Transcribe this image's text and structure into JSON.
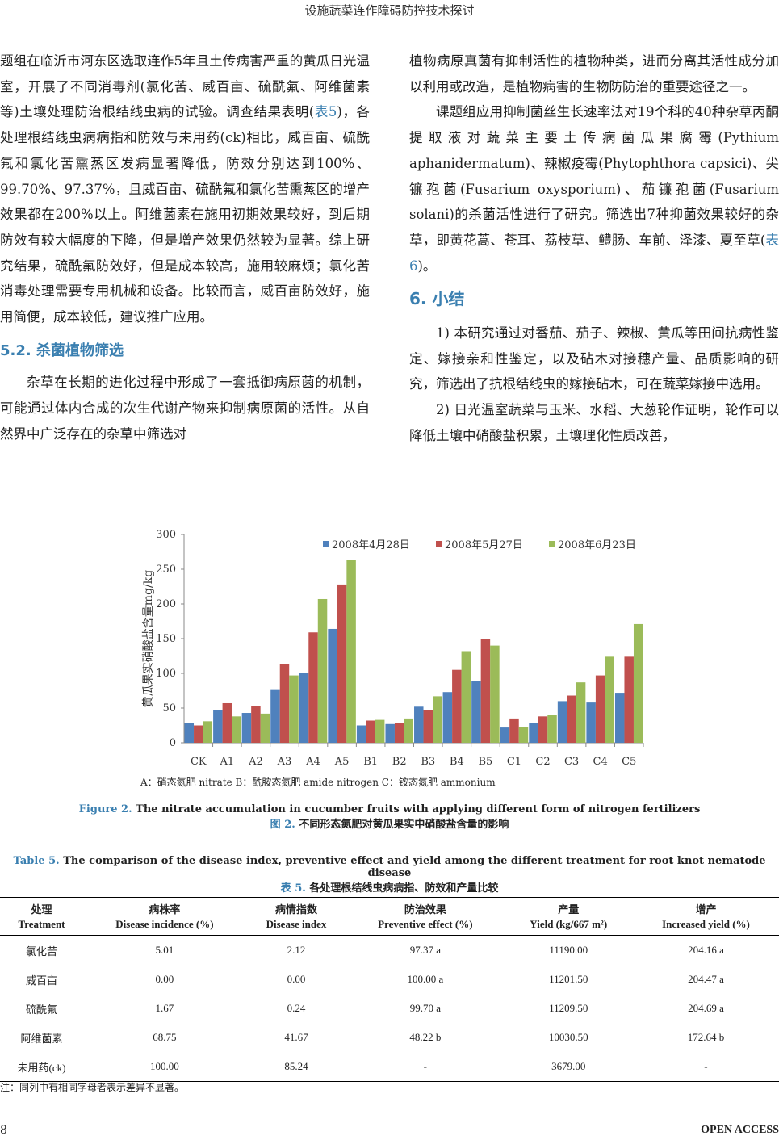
{
  "header": {
    "running_title": "设施蔬菜连作障碍防控技术探讨"
  },
  "left_column": {
    "p1": "题组在临沂市河东区选取连作5年且土传病害严重的黄瓜日光温室，开展了不同消毒剂(氯化苦、威百亩、硫酰氟、阿维菌素等)土壤处理防治根结线虫病的试验。调查结果表明(",
    "p1_ref": "表5",
    "p1_rest": ")，各处理根结线虫病病指和防效与未用药(ck)相比，威百亩、硫酰氟和氯化苦熏蒸区发病显著降低，防效分别达到100%、99.70%、97.37%，且威百亩、硫酰氟和氯化苦熏蒸区的增产效果都在200%以上。阿维菌素在施用初期效果较好，到后期防效有较大幅度的下降，但是增产效果仍然较为显著。综上研究结果，硫酰氟防效好，但是成本较高，施用较麻烦；氯化苦消毒处理需要专用机械和设备。比较而言，威百亩防效好，施用简便，成本较低，建议推广应用。",
    "h_5_2": "5.2.  杀菌植物筛选",
    "p2": "杂草在长期的进化过程中形成了一套抵御病原菌的机制，可能通过体内合成的次生代谢产物来抑制病原菌的活性。从自然界中广泛存在的杂草中筛选对"
  },
  "right_column": {
    "p1": "植物病原真菌有抑制活性的植物种类，进而分离其活性成分加以利用或改造，是植物病害的生物防防治的重要途径之一。",
    "p2": "课题组应用抑制菌丝生长速率法对19个科的40种杂草丙酮提取液对蔬菜主要土传病菌瓜果腐霉(Pythium aphanidermatum)、辣椒疫霉(Phytophthora capsici)、尖镰孢菌(Fusarium oxysporium)、茄镰孢菌(Fusarium solani)的杀菌活性进行了研究。筛选出7种抑菌效果较好的杂草，即黄花蒿、苍耳、荔枝草、鳢肠、车前、泽漆、夏至草(",
    "p2_ref": "表6",
    "p2_rest": ")。",
    "h_6": "6.  小结",
    "p3": "1) 本研究通过对番茄、茄子、辣椒、黄瓜等田间抗病性鉴定、嫁接亲和性鉴定，以及砧木对接穗产量、品质影响的研究，筛选出了抗根结线虫的嫁接砧木，可在蔬菜嫁接中选用。",
    "p4": "2) 日光温室蔬菜与玉米、水稻、大葱轮作证明，轮作可以降低土壤中硝酸盐积累，土壤理化性质改善，"
  },
  "chart_data": {
    "type": "bar",
    "categories": [
      "CK",
      "A1",
      "A2",
      "A3",
      "A4",
      "A5",
      "B1",
      "B2",
      "B3",
      "B4",
      "B5",
      "C1",
      "C2",
      "C3",
      "C4",
      "C5"
    ],
    "series": [
      {
        "name": "2008年4月28日",
        "color": "#4f81bd",
        "values": [
          28,
          47,
          43,
          76,
          101,
          164,
          25,
          27,
          52,
          73,
          89,
          22,
          29,
          60,
          58,
          72
        ]
      },
      {
        "name": "2008年5月27日",
        "color": "#c0504d",
        "values": [
          25,
          57,
          53,
          113,
          159,
          228,
          32,
          28,
          47,
          105,
          150,
          35,
          38,
          68,
          97,
          124
        ]
      },
      {
        "name": "2008年6月23日",
        "color": "#9bbb59",
        "values": [
          31,
          38,
          42,
          97,
          207,
          263,
          33,
          35,
          67,
          132,
          140,
          23,
          40,
          87,
          124,
          171
        ]
      }
    ],
    "ylabel": "黄瓜果实硝酸盐含量mg/kg",
    "ylim": [
      0,
      300
    ],
    "yticks": [
      "0",
      "50",
      "100",
      "150",
      "200",
      "250",
      "300"
    ],
    "legend": "top-right",
    "grid": false
  },
  "chart_note": "A：硝态氮肥 nitrate B：酰胺态氮肥 amide nitrogen C：铵态氮肥 ammonium",
  "figure_caption": {
    "label_en": "Figure 2.",
    "text_en": "The nitrate accumulation in cucumber fruits with applying different form of nitrogen fertilizers",
    "label_cn": "图 2.",
    "text_cn": "不同形态氮肥对黄瓜果实中硝酸盐含量的影响"
  },
  "table_caption": {
    "label_en": "Table 5.",
    "text_en": "The comparison of the disease index, preventive effect and yield among the different treatment for root knot nematode disease",
    "label_cn": "表 5.",
    "text_cn": "各处理根结线虫病病指、防效和产量比较"
  },
  "table": {
    "headers": [
      {
        "cn": "处理",
        "en": "Treatment"
      },
      {
        "cn": "病株率",
        "en": "Disease incidence (%)"
      },
      {
        "cn": "病情指数",
        "en": "Disease index"
      },
      {
        "cn": "防治效果",
        "en": "Preventive effect (%)"
      },
      {
        "cn": "产量",
        "en": "Yield (kg/667 m²)"
      },
      {
        "cn": "增产",
        "en": "Increased yield (%)"
      }
    ],
    "rows": [
      [
        "氯化苦",
        "5.01",
        "2.12",
        "97.37 a",
        "11190.00",
        "204.16 a"
      ],
      [
        "威百亩",
        "0.00",
        "0.00",
        "100.00 a",
        "11201.50",
        "204.47 a"
      ],
      [
        "硫酰氟",
        "1.67",
        "0.24",
        "99.70 a",
        "11209.50",
        "204.69 a"
      ],
      [
        "阿维菌素",
        "68.75",
        "41.67",
        "48.22 b",
        "10030.50",
        "172.64 b"
      ],
      [
        "未用药(ck)",
        "100.00",
        "85.24",
        "-",
        "3679.00",
        "-"
      ]
    ],
    "note": "注：同列中有相同字母者表示差异不显著。"
  },
  "footer": {
    "page": "8",
    "journal": "OPEN ACCESS"
  }
}
